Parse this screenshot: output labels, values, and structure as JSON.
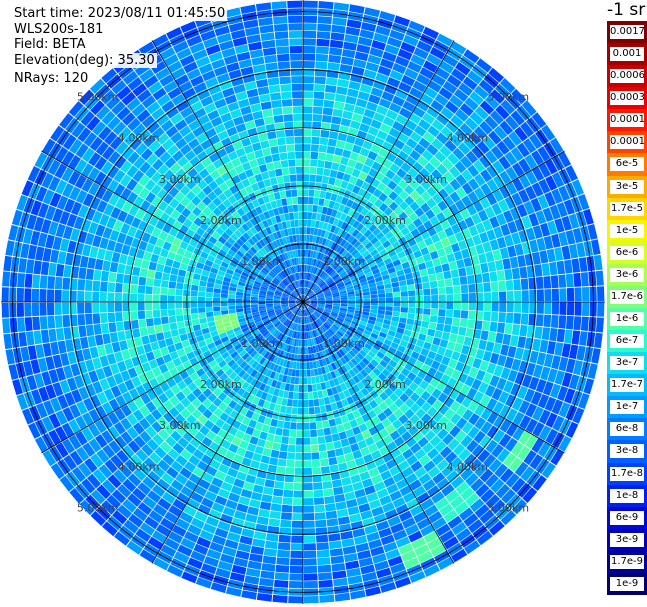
{
  "header": {
    "start_time": "Start time: 2023/08/11 01:45:50",
    "instrument": "WLS200s-181",
    "field": "Field: BETA",
    "elevation": "Elevation(deg): 35.30",
    "nrays": "NRays: 120"
  },
  "colorbar": {
    "unit_label": "-1 sr",
    "levels": [
      {
        "label": "0.0017",
        "color": "#7f0000"
      },
      {
        "label": "0.001",
        "color": "#a30000"
      },
      {
        "label": "0.0006",
        "color": "#c70000"
      },
      {
        "label": "0.0003",
        "color": "#e60000"
      },
      {
        "label": "0.00017",
        "color": "#ff1800"
      },
      {
        "label": "0.0001",
        "color": "#ff4400"
      },
      {
        "label": "6e-5",
        "color": "#ff7a00"
      },
      {
        "label": "3e-5",
        "color": "#ffaa00"
      },
      {
        "label": "1.7e-5",
        "color": "#ffd400"
      },
      {
        "label": "1e-5",
        "color": "#f8f500"
      },
      {
        "label": "6e-6",
        "color": "#d4ff22"
      },
      {
        "label": "3e-6",
        "color": "#a8ff4e"
      },
      {
        "label": "1.7e-6",
        "color": "#7dff7a"
      },
      {
        "label": "1e-6",
        "color": "#52ffa5"
      },
      {
        "label": "6e-7",
        "color": "#2bf8cc"
      },
      {
        "label": "3e-7",
        "color": "#10dcf0"
      },
      {
        "label": "1.7e-7",
        "color": "#00bcff"
      },
      {
        "label": "1e-7",
        "color": "#009cff"
      },
      {
        "label": "6e-8",
        "color": "#007eff"
      },
      {
        "label": "3e-8",
        "color": "#0060ff"
      },
      {
        "label": "1.7e-8",
        "color": "#0040ff"
      },
      {
        "label": "1e-8",
        "color": "#0020f0"
      },
      {
        "label": "6e-9",
        "color": "#0008d8"
      },
      {
        "label": "3e-9",
        "color": "#0000b8"
      },
      {
        "label": "1.7e-9",
        "color": "#000096"
      },
      {
        "label": "1e-9",
        "color": "#00006e"
      }
    ]
  },
  "chart_data": {
    "type": "heatmap",
    "projection": "polar PPI scan",
    "field": "BETA",
    "elevation_deg": 35.3,
    "n_rays": 120,
    "max_range_km": 5.2,
    "range_ring_km": [
      1.0,
      2.0,
      3.0,
      4.0,
      5.0
    ],
    "range_labels": [
      "1.00km",
      "2.00km",
      "3.00km",
      "4.00km",
      "5.00km"
    ],
    "spoke_angles_deg": [
      0,
      30,
      60,
      90,
      120,
      150,
      180,
      210,
      240,
      270,
      300,
      330
    ],
    "value_scale": "log",
    "value_range": [
      1e-09,
      0.0017
    ],
    "profile_by_range": [
      {
        "range_km": 0.2,
        "beta": 4e-08
      },
      {
        "range_km": 0.8,
        "beta": 6e-08
      },
      {
        "range_km": 1.3,
        "beta": 1.2e-07
      },
      {
        "range_km": 2.0,
        "beta": 2.5e-07
      },
      {
        "range_km": 2.6,
        "beta": 3e-07
      },
      {
        "range_km": 3.2,
        "beta": 2.5e-07
      },
      {
        "range_km": 3.8,
        "beta": 1.2e-07
      },
      {
        "range_km": 4.4,
        "beta": 6e-08
      },
      {
        "range_km": 5.0,
        "beta": 4e-08
      }
    ],
    "hotspots": [
      {
        "azimuth_deg": 255,
        "range_km": 1.35,
        "beta": 2e-06
      },
      {
        "azimuth_deg": 125,
        "range_km": 4.55,
        "beta": 1e-06
      },
      {
        "azimuth_deg": 142,
        "range_km": 4.35,
        "beta": 7e-07
      },
      {
        "azimuth_deg": 155,
        "range_km": 4.7,
        "beta": 8e-07
      }
    ]
  }
}
